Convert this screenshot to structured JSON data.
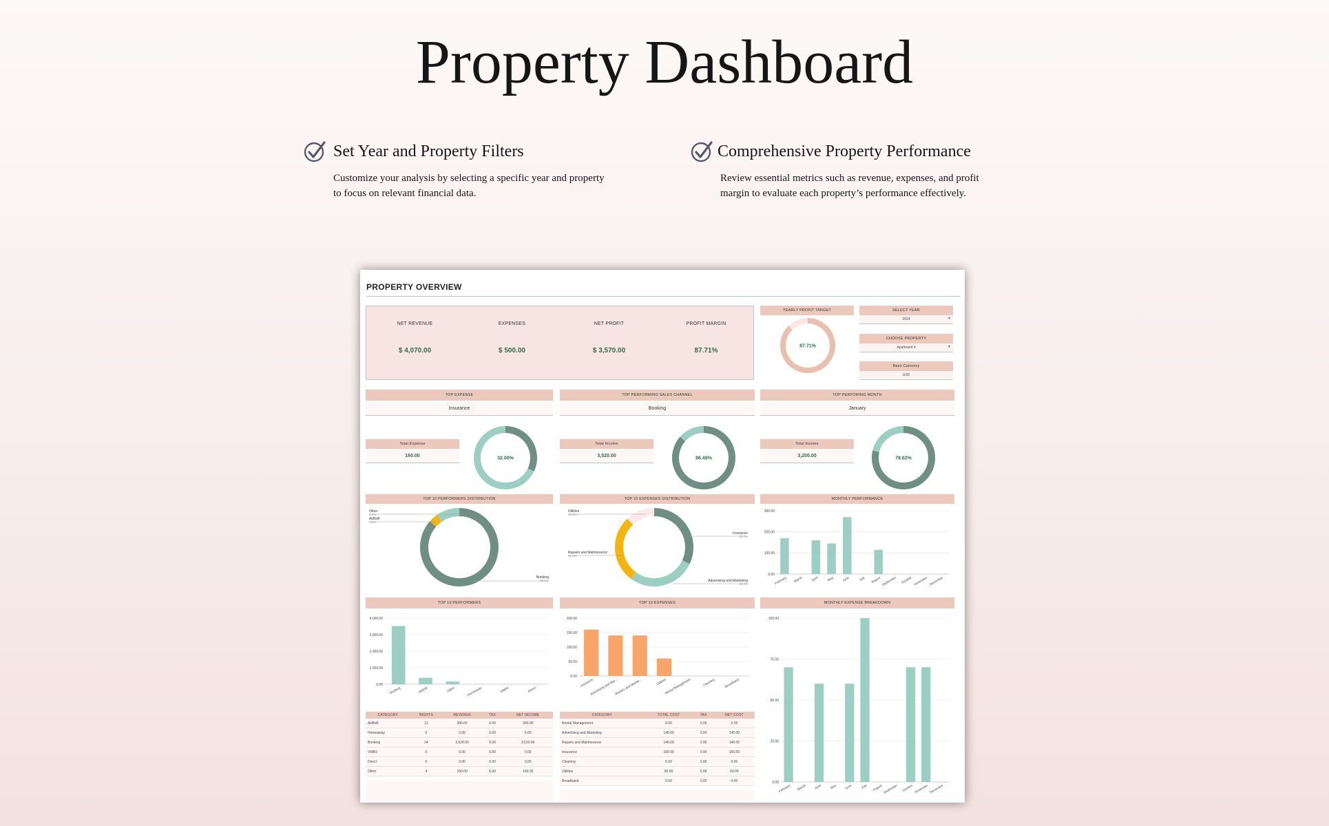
{
  "hero": {
    "title": "Property Dashboard"
  },
  "features": [
    {
      "title": "Set Year and Property Filters",
      "description": "Customize your analysis by selecting a specific year and property to focus on relevant financial data."
    },
    {
      "title": "Comprehensive Property Performance",
      "description": "Review essential metrics such as revenue, expenses, and profit margin to evaluate each property’s performance effectively."
    }
  ],
  "dashboard": {
    "title": "PROPERTY OVERVIEW",
    "kpis": [
      {
        "label": "NET REVENUE",
        "value": "$ 4,070.00"
      },
      {
        "label": "EXPENSES",
        "value": "$ 500.00"
      },
      {
        "label": "NET PROFIT",
        "value": "$ 3,570.00"
      },
      {
        "label": "PROFIT MARGIN",
        "value": "87.71%"
      }
    ],
    "yearly_target": {
      "label": "YEARLY PROFIT TARGET",
      "value": "87.71%",
      "fraction": 0.8771
    },
    "filters": {
      "year_label": "SELECT YEAR",
      "year_value": "2024",
      "property_label": "CHOOSE PROPERTY",
      "property_value": "Apartment 4",
      "currency_label": "Base Currency",
      "currency_value": "USD"
    },
    "top_expense": {
      "label": "TOP EXPENSE",
      "value": "Insurance",
      "sub_label": "Total Expense",
      "sub_value": "160.00",
      "percent": "32.00%",
      "fraction": 0.32
    },
    "top_channel": {
      "label": "TOP PERFORMING SALES CHANNEL",
      "value": "Booking",
      "sub_label": "Total Income",
      "sub_value": "3,520.00",
      "percent": "86.49%",
      "fraction": 0.8649
    },
    "top_month": {
      "label": "TOP PERFOMING MONTH",
      "value": "January",
      "sub_label": "Total Income",
      "sub_value": "3,200.00",
      "percent": "78.62%",
      "fraction": 0.7862
    },
    "performers_dist": {
      "label": "TOP 10 PERFORMERS DISTRIBUTION",
      "slices": [
        {
          "name": "Booking",
          "pct": "86.5%",
          "value": 86.5,
          "color": "#6f8e84"
        },
        {
          "name": "Other",
          "pct": "3.9%",
          "value": 3.9,
          "color": "#f5b50e"
        },
        {
          "name": "AirBnB",
          "pct": "9.6%",
          "value": 9.6,
          "color": "#9ccfc4"
        }
      ]
    },
    "expenses_dist": {
      "label": "TOP 10 EXPENSES DISTRIBUTION",
      "slices": [
        {
          "name": "Insurance",
          "pct": "32.0%",
          "value": 32,
          "color": "#6f8e84"
        },
        {
          "name": "Advertising and Marketing",
          "pct": "28.0%",
          "value": 28,
          "color": "#9ccfc4"
        },
        {
          "name": "Repairs and Maintenance",
          "pct": "28.0%",
          "value": 28,
          "color": "#f5b50e"
        },
        {
          "name": "Utilities",
          "pct": "12.0%",
          "value": 12,
          "color": "#fcebea"
        }
      ]
    },
    "monthly_performance": {
      "label": "MONTHLY PERFORMANCE",
      "yticks": [
        "300.00",
        "200.00",
        "100.00",
        "0.00"
      ],
      "categories": [
        "February",
        "March",
        "April",
        "May",
        "June",
        "July",
        "August",
        "September",
        "October",
        "November",
        "December"
      ],
      "values": [
        170,
        0,
        160,
        145,
        270,
        0,
        115,
        0,
        0,
        0,
        0
      ],
      "ymax": 300
    },
    "top_performers": {
      "label": "TOP 10 PERFORMERS",
      "yticks": [
        "4,000.00",
        "3,000.00",
        "2,000.00",
        "1,000.00",
        "0.00"
      ],
      "categories": [
        "Booking",
        "AirBnB",
        "Other",
        "Homeaway",
        "VRBO",
        "Direct"
      ],
      "values": [
        3520,
        390,
        160,
        0,
        0,
        0
      ],
      "ymax": 4000
    },
    "top_expenses": {
      "label": "TOP 10 EXPENSES",
      "yticks": [
        "200.00",
        "150.00",
        "100.00",
        "50.00",
        "0.00"
      ],
      "categories": [
        "Insurance",
        "Advertising and Mar...",
        "Repairs and Mainte...",
        "Utilities",
        "Rental Management",
        "Cleaning",
        "Broadband"
      ],
      "values": [
        160,
        140,
        140,
        60,
        0,
        0,
        0
      ],
      "ymax": 200
    },
    "monthly_expense": {
      "label": "MONTHLY EXPENSE BREAKDOWN",
      "yticks": [
        "100.00",
        "75.00",
        "50.00",
        "25.00",
        "0.00"
      ],
      "categories": [
        "February",
        "March",
        "April",
        "May",
        "June",
        "July",
        "August",
        "September",
        "October",
        "November",
        "December"
      ],
      "values": [
        70,
        0,
        60,
        0,
        60,
        100,
        0,
        0,
        70,
        70,
        0
      ],
      "ymax": 100
    },
    "performers_table": {
      "headers": [
        "CATEGORY",
        "NIGHTS",
        "REVENUE",
        "TAX",
        "NET INCOME"
      ],
      "rows": [
        [
          "AirBnB",
          "13",
          "390.00",
          "0.00",
          "390.00"
        ],
        [
          "Homeaway",
          "0",
          "0.00",
          "0.00",
          "0.00"
        ],
        [
          "Booking",
          "24",
          "3,520.00",
          "0.00",
          "3,520.00"
        ],
        [
          "VRBO",
          "0",
          "0.00",
          "0.00",
          "0.00"
        ],
        [
          "Direct",
          "0",
          "0.00",
          "0.00",
          "0.00"
        ],
        [
          "Other",
          "4",
          "160.00",
          "0.00",
          "160.00"
        ]
      ]
    },
    "expenses_table": {
      "headers": [
        "CATEGORY",
        "TOTAL COST",
        "TAX",
        "NET COST"
      ],
      "rows": [
        [
          "Rental Management",
          "0.00",
          "0.00",
          "0.00"
        ],
        [
          "Advertising and Marketing",
          "140.00",
          "0.00",
          "140.00"
        ],
        [
          "Repairs and Maintenance",
          "140.00",
          "0.00",
          "140.00"
        ],
        [
          "Insurance",
          "160.00",
          "0.00",
          "160.00"
        ],
        [
          "Cleaning",
          "0.00",
          "0.00",
          "0.00"
        ],
        [
          "Utilities",
          "60.00",
          "0.00",
          "60.00"
        ],
        [
          "Broadband",
          "0.00",
          "0.00",
          "0.00"
        ]
      ]
    },
    "colors": {
      "accent": "#ecc9bc",
      "teal": "#9ccfc4",
      "dark_teal": "#6f8e84",
      "orange": "#f9a468",
      "yellow": "#f5b50e",
      "green_text": "#2f6b4a"
    }
  }
}
